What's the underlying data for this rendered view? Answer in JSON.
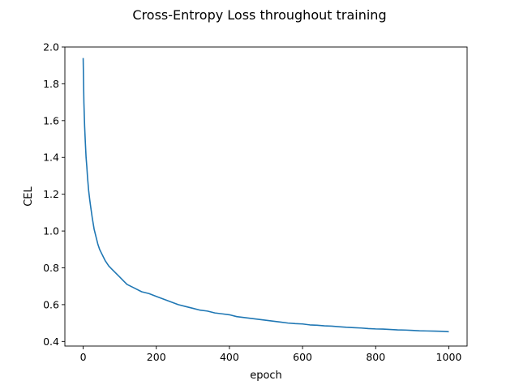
{
  "chart_data": {
    "type": "line",
    "title": "Cross-Entropy Loss throughout training",
    "xlabel": "epoch",
    "ylabel": "CEL",
    "xlim": [
      -50,
      1050
    ],
    "ylim": [
      0.375,
      2.0
    ],
    "xticks": [
      0,
      200,
      400,
      600,
      800,
      1000
    ],
    "yticks": [
      0.4,
      0.6,
      0.8,
      1.0,
      1.2,
      1.4,
      1.6,
      1.8,
      2.0
    ],
    "xtick_labels": [
      "0",
      "200",
      "400",
      "600",
      "800",
      "1000"
    ],
    "ytick_labels": [
      "0.4",
      "0.6",
      "0.8",
      "1.0",
      "1.2",
      "1.4",
      "1.6",
      "1.8",
      "2.0"
    ],
    "grid": false,
    "series": [
      {
        "color": "#1f77b4",
        "x": [
          0,
          2,
          4,
          6,
          8,
          10,
          12,
          15,
          18,
          20,
          25,
          30,
          35,
          40,
          45,
          50,
          60,
          70,
          80,
          90,
          100,
          110,
          120,
          140,
          160,
          180,
          200,
          220,
          240,
          260,
          280,
          300,
          320,
          340,
          360,
          380,
          400,
          420,
          440,
          460,
          480,
          500,
          520,
          540,
          560,
          580,
          600,
          620,
          640,
          660,
          680,
          700,
          720,
          740,
          760,
          780,
          800,
          820,
          840,
          860,
          880,
          900,
          920,
          940,
          960,
          980,
          1000
        ],
        "y": [
          1.94,
          1.7,
          1.57,
          1.48,
          1.4,
          1.35,
          1.29,
          1.22,
          1.17,
          1.14,
          1.07,
          1.01,
          0.97,
          0.93,
          0.9,
          0.88,
          0.84,
          0.81,
          0.79,
          0.77,
          0.75,
          0.73,
          0.71,
          0.69,
          0.67,
          0.66,
          0.645,
          0.63,
          0.615,
          0.6,
          0.59,
          0.58,
          0.57,
          0.565,
          0.555,
          0.55,
          0.545,
          0.535,
          0.53,
          0.525,
          0.52,
          0.515,
          0.51,
          0.505,
          0.5,
          0.497,
          0.495,
          0.49,
          0.488,
          0.485,
          0.483,
          0.48,
          0.477,
          0.475,
          0.473,
          0.47,
          0.468,
          0.467,
          0.465,
          0.463,
          0.462,
          0.46,
          0.458,
          0.457,
          0.456,
          0.455,
          0.453
        ]
      }
    ]
  }
}
